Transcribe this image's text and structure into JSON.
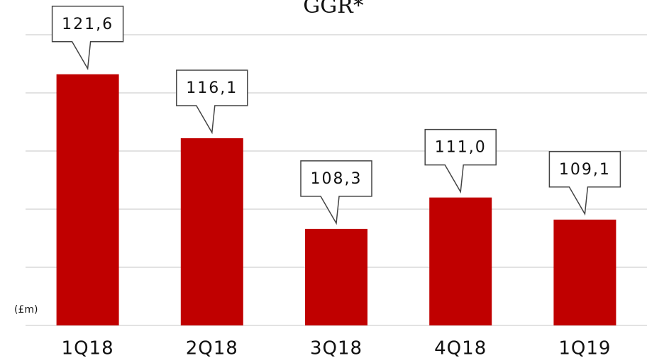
{
  "chart_data": {
    "type": "bar",
    "title": "GGR*",
    "y_label": "(£m)",
    "categories": [
      "1Q18",
      "2Q18",
      "3Q18",
      "4Q18",
      "1Q19"
    ],
    "values": [
      121.6,
      116.1,
      108.3,
      111.0,
      109.1
    ],
    "value_labels": [
      "121,6",
      "116,1",
      "108,3",
      "111,0",
      "109,1"
    ],
    "color": "#c00000",
    "ylim": [
      100,
      125
    ],
    "yticks": [
      100,
      105,
      110,
      115,
      120,
      125
    ],
    "grid": true
  }
}
